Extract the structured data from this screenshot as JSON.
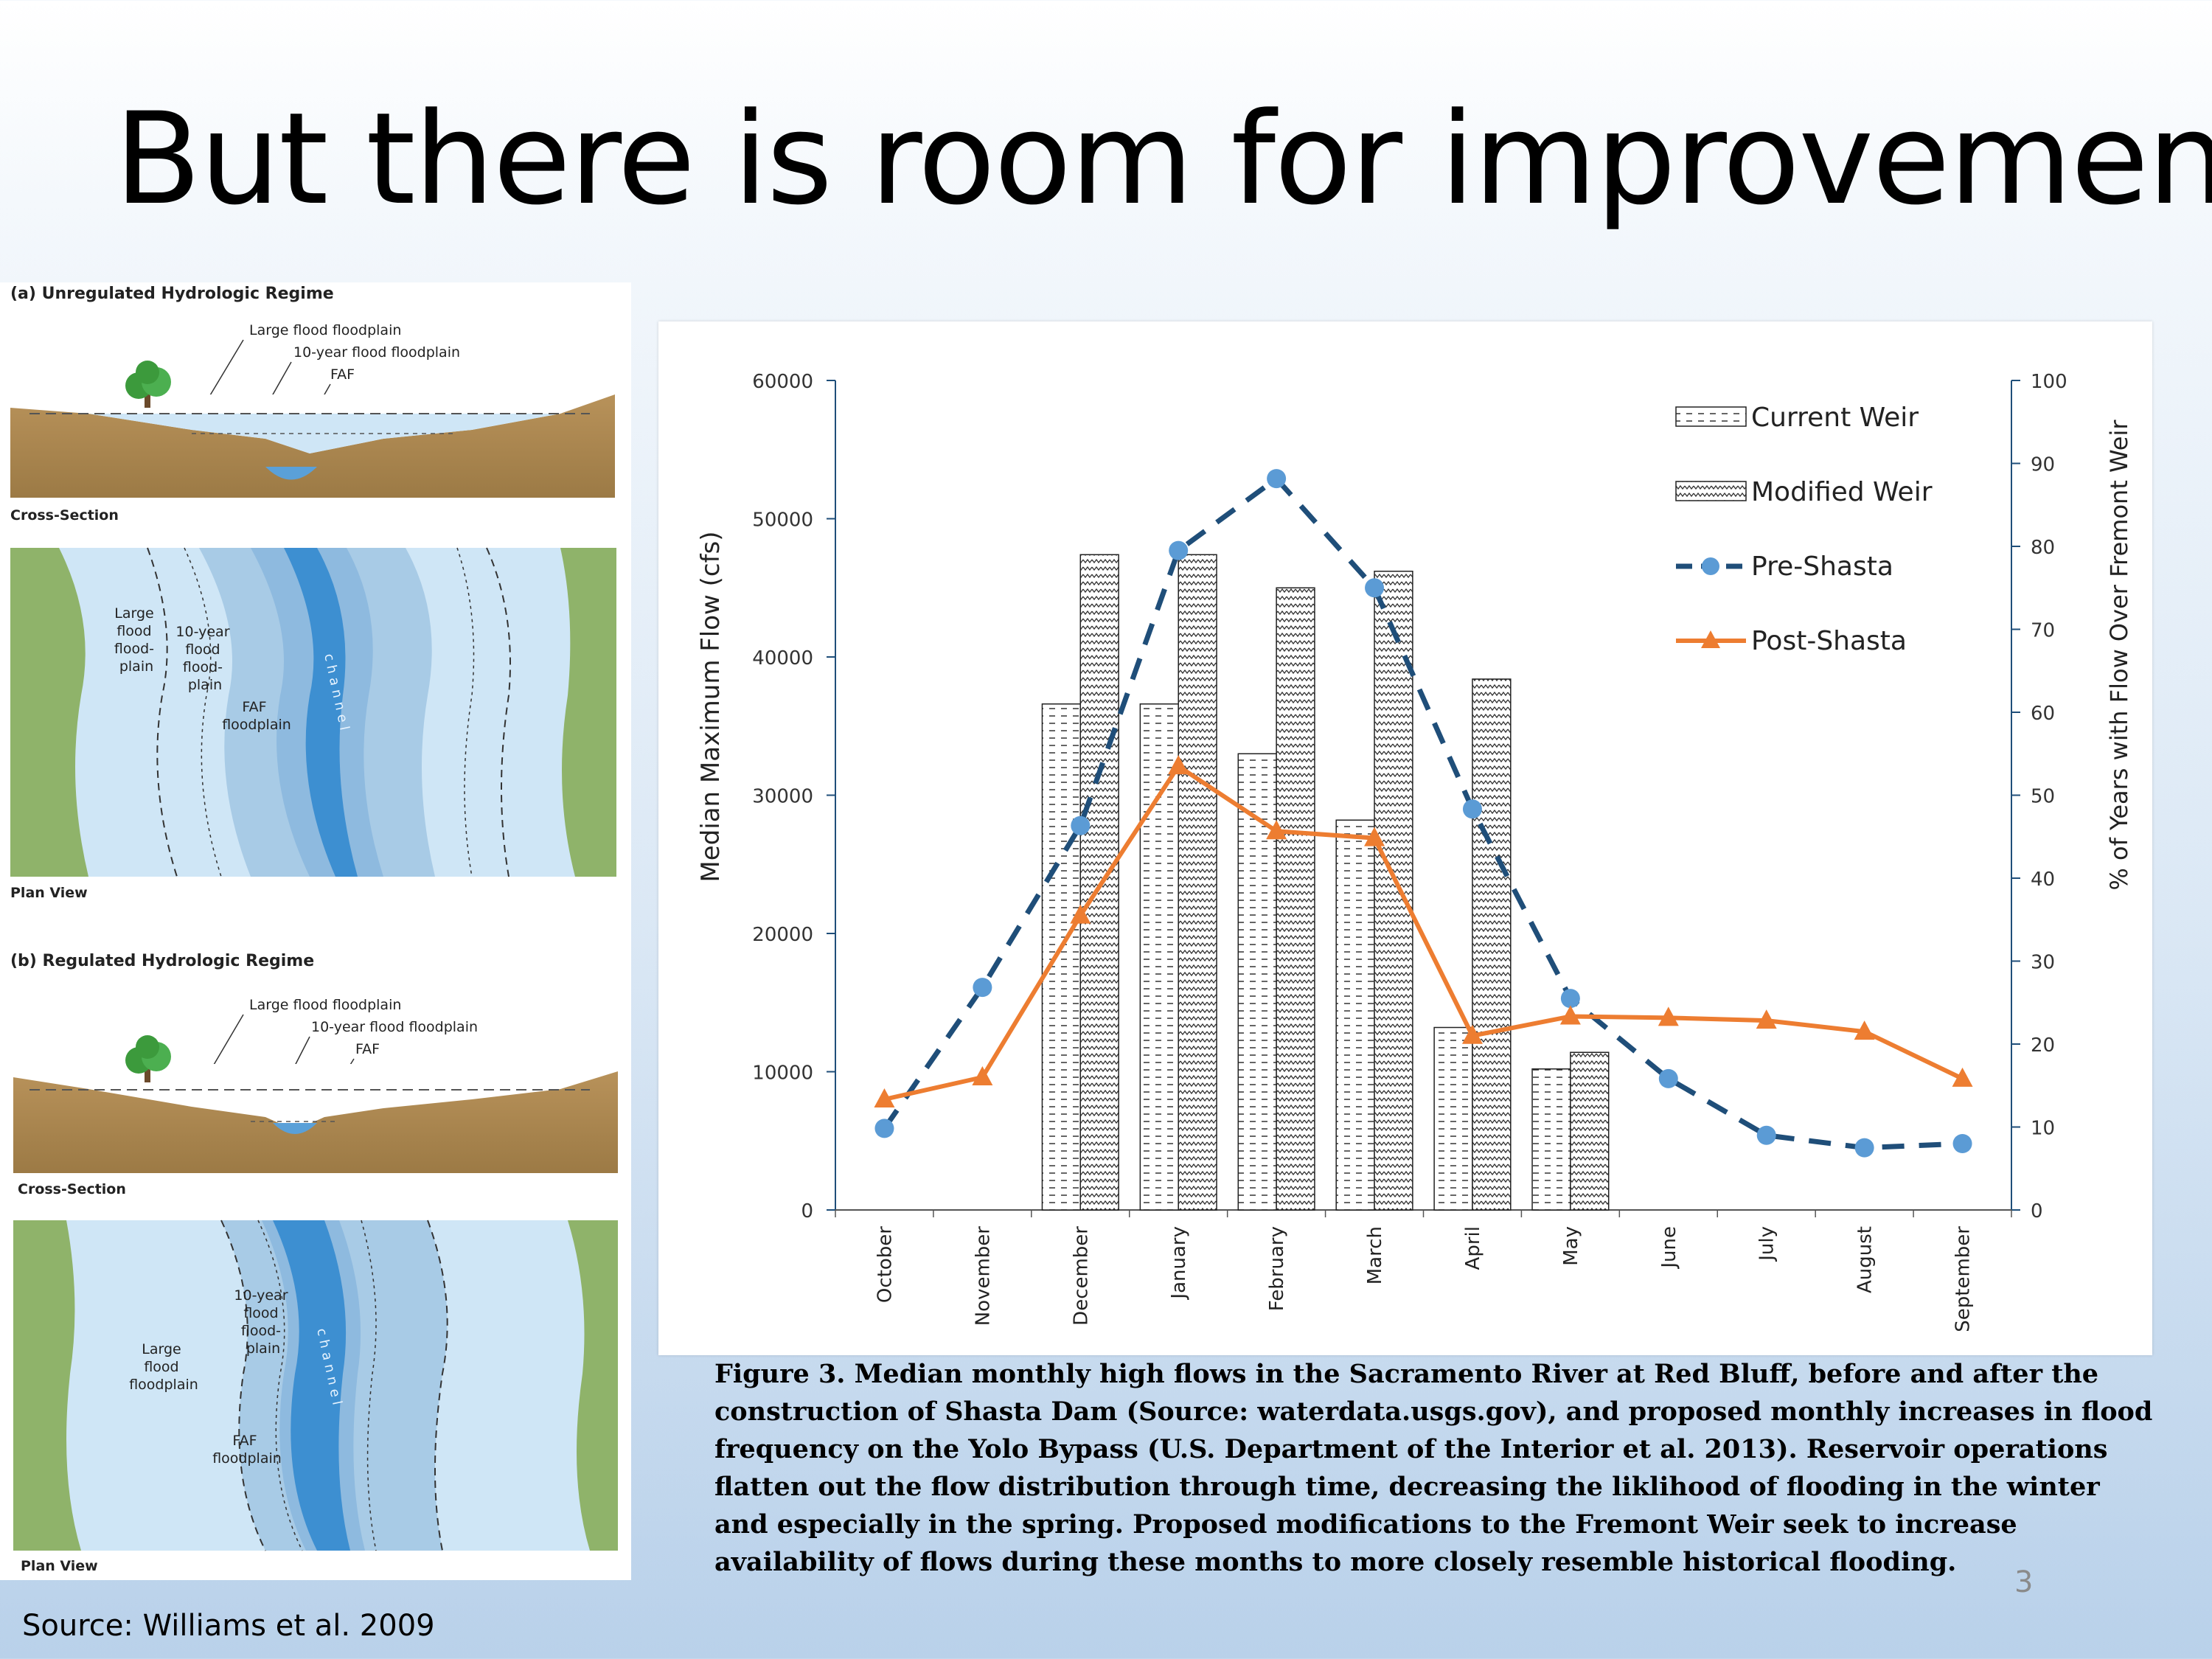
{
  "slide": {
    "title": "But there is room for improvement",
    "source": "Source: Williams et al. 2009",
    "page_number": "3"
  },
  "diagram": {
    "a_title": "(a)  Unregulated Hydrologic Regime",
    "b_title": "(b)  Regulated Hydrologic Regime",
    "large_flood": "Large flood floodplain",
    "ten_year": "10-year flood floodplain",
    "faf": "FAF",
    "cross_section": "Cross-Section",
    "plan_view": "Plan View",
    "large_lines": [
      "Large",
      "flood",
      "flood-",
      "plain"
    ],
    "ten_lines": [
      "10-year",
      "flood",
      "flood-",
      "plain"
    ],
    "faf_lines": [
      "FAF",
      "floodplain"
    ],
    "channel": "c h a n n e l",
    "b_large_lines": [
      "Large",
      "flood",
      "floodplain"
    ]
  },
  "caption": "Figure 3. Median monthly high flows in the Sacramento River at Red Bluff, before and after the construction of Shasta Dam (Source: waterdata.usgs.gov), and proposed monthly increases in flood frequency on the Yolo Bypass (U.S. Department of the Interior et al. 2013). Reservoir operations flatten out the flow distribution through time, decreasing the liklihood of flooding in the winter and especially in the spring. Proposed modifications to the Fremont Weir seek to increase availability of flows during these months to more closely resemble historical flooding.",
  "chart_data": {
    "type": "bar",
    "categories": [
      "October",
      "November",
      "December",
      "January",
      "February",
      "March",
      "April",
      "May",
      "June",
      "July",
      "August",
      "September"
    ],
    "ylabel": "Median Maximum Flow (cfs)",
    "y2label": "% of Years with Flow Over Fremont Weir",
    "ylim": [
      0,
      60000
    ],
    "y2lim": [
      0,
      100
    ],
    "yticks": [
      "0",
      "10000",
      "20000",
      "30000",
      "40000",
      "50000",
      "60000"
    ],
    "y2ticks": [
      "0",
      "10",
      "20",
      "30",
      "40",
      "50",
      "60",
      "70",
      "80",
      "90",
      "100"
    ],
    "series": [
      {
        "name": "Current Weir",
        "kind": "bar",
        "axis": "right",
        "values": [
          null,
          null,
          61,
          61,
          55,
          47,
          22,
          17,
          null,
          null,
          null,
          null
        ]
      },
      {
        "name": "Modified Weir",
        "kind": "bar",
        "axis": "right",
        "values": [
          null,
          null,
          79,
          79,
          75,
          77,
          64,
          19,
          null,
          null,
          null,
          null
        ]
      },
      {
        "name": "Pre-Shasta",
        "kind": "line",
        "axis": "left",
        "color": "#1f4e79",
        "marker_color": "#5b9bd5",
        "values": [
          5900,
          16100,
          27800,
          47700,
          52900,
          45000,
          29000,
          15300,
          9500,
          5400,
          4500,
          4800
        ]
      },
      {
        "name": "Post-Shasta",
        "kind": "line",
        "axis": "left",
        "color": "#ed7d31",
        "values": [
          8000,
          9600,
          21300,
          32100,
          27400,
          26900,
          12600,
          14000,
          13900,
          13700,
          12900,
          9500
        ]
      }
    ],
    "legend": "top-right",
    "grid": false
  }
}
